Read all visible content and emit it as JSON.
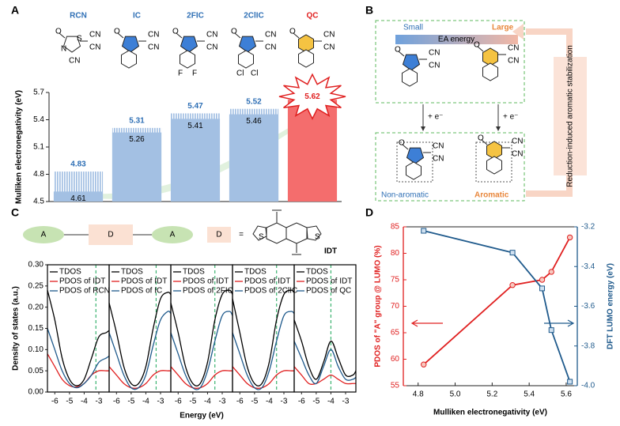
{
  "panel_labels": {
    "a": "A",
    "b": "B",
    "c": "C",
    "d": "D"
  },
  "atoms": {
    "cn": "CN",
    "o": "O",
    "s": "S",
    "n": "N",
    "f": "F",
    "cl": "Cl"
  },
  "panel_b": {
    "small": "Small",
    "large": "Large",
    "scale": "EA energy",
    "reduction": "+ e⁻",
    "non_aromatic": "Non-aromatic",
    "aromatic": "Aromatic",
    "side": "Reduction-induced aromatic stabilization"
  },
  "panel_c_scheme": {
    "acceptor": "A",
    "donor": "D",
    "equals": "=",
    "core": "IDT"
  },
  "chart_data": [
    {
      "type": "bar",
      "ylabel": "Mulliken electronegativity (eV)",
      "categories": [
        "RCN",
        "IC",
        "2FIC",
        "2ClIC",
        "QC"
      ],
      "values": [
        4.83,
        5.31,
        5.47,
        5.52,
        5.62
      ],
      "inner_values": [
        4.61,
        5.26,
        5.41,
        5.46,
        null
      ],
      "bar_colors": [
        "#a3c0e3",
        "#a3c0e3",
        "#a3c0e3",
        "#a3c0e3",
        "#f46d6d"
      ],
      "label_colors": [
        "#2e6fb5",
        "#2e6fb5",
        "#2e6fb5",
        "#2e6fb5",
        "#e02020"
      ],
      "ylim": [
        4.5,
        5.7
      ],
      "yticks": [
        4.5,
        4.8,
        5.1,
        5.4,
        5.7
      ]
    },
    {
      "type": "line",
      "xlabel": "Energy (eV)",
      "ylabel": "Density of states (a.u.)",
      "x": [
        -6.5,
        -6,
        -5.5,
        -5,
        -4.5,
        -4,
        -3.5,
        -3,
        -2.5,
        -2.3
      ],
      "xlim": [
        -6.5,
        -2.3
      ],
      "xticks": [
        -6,
        -5,
        -4,
        -3
      ],
      "ylim": [
        0,
        0.3
      ],
      "yticks": [
        {
          "value": 0,
          "label": "0.00"
        },
        {
          "value": 0.05,
          "label": "0.05"
        },
        {
          "value": 0.1,
          "label": "0.10"
        },
        {
          "value": 0.15,
          "label": "0.15"
        },
        {
          "value": 0.2,
          "label": "0.20"
        },
        {
          "value": 0.25,
          "label": "0.25"
        },
        {
          "value": 0.3,
          "label": "0.30"
        }
      ],
      "lumo_color": "#3cb371",
      "subplots": [
        {
          "lumo": -3.2,
          "series": [
            {
              "name": "TDOS",
              "color": "#000000",
              "values": [
                0.24,
                0.17,
                0.08,
                0.03,
                0.015,
                0.03,
                0.08,
                0.13,
                0.14,
                0.145
              ]
            },
            {
              "name": "PDOS of IDT",
              "color": "#e02020",
              "values": [
                0.09,
                0.06,
                0.03,
                0.015,
                0.012,
                0.02,
                0.04,
                0.05,
                0.05,
                0.05
              ]
            },
            {
              "name": "PDOS of RCN",
              "color": "#1f5a8c",
              "values": [
                0.15,
                0.1,
                0.05,
                0.02,
                0.01,
                0.02,
                0.04,
                0.07,
                0.08,
                0.085
              ]
            }
          ]
        },
        {
          "lumo": -3.3,
          "series": [
            {
              "name": "TDOS",
              "color": "#000000",
              "values": [
                0.21,
                0.14,
                0.06,
                0.02,
                0.02,
                0.06,
                0.15,
                0.22,
                0.235,
                0.23
              ]
            },
            {
              "name": "PDOS of IDT",
              "color": "#e02020",
              "values": [
                0.06,
                0.04,
                0.02,
                0.01,
                0.01,
                0.02,
                0.04,
                0.05,
                0.05,
                0.05
              ]
            },
            {
              "name": "PDOS of IC",
              "color": "#1f5a8c",
              "values": [
                0.14,
                0.09,
                0.04,
                0.01,
                0.01,
                0.04,
                0.11,
                0.17,
                0.19,
                0.185
              ]
            }
          ]
        },
        {
          "lumo": -3.5,
          "series": [
            {
              "name": "TDOS",
              "color": "#000000",
              "values": [
                0.21,
                0.14,
                0.06,
                0.02,
                0.02,
                0.07,
                0.17,
                0.23,
                0.24,
                0.23
              ]
            },
            {
              "name": "PDOS of IDT",
              "color": "#e02020",
              "values": [
                0.06,
                0.04,
                0.02,
                0.01,
                0.01,
                0.02,
                0.04,
                0.05,
                0.05,
                0.05
              ]
            },
            {
              "name": "PDOS of 2FIC",
              "color": "#1f5a8c",
              "values": [
                0.14,
                0.09,
                0.04,
                0.01,
                0.01,
                0.05,
                0.12,
                0.18,
                0.19,
                0.18
              ]
            }
          ]
        },
        {
          "lumo": -3.5,
          "series": [
            {
              "name": "TDOS",
              "color": "#000000",
              "values": [
                0.22,
                0.14,
                0.06,
                0.02,
                0.02,
                0.07,
                0.17,
                0.23,
                0.24,
                0.235
              ]
            },
            {
              "name": "PDOS of IDT",
              "color": "#e02020",
              "values": [
                0.06,
                0.04,
                0.02,
                0.01,
                0.01,
                0.02,
                0.04,
                0.05,
                0.05,
                0.05
              ]
            },
            {
              "name": "PDOS of 2ClIC",
              "color": "#1f5a8c",
              "values": [
                0.14,
                0.09,
                0.04,
                0.01,
                0.01,
                0.05,
                0.12,
                0.18,
                0.19,
                0.185
              ]
            }
          ]
        },
        {
          "lumo": -4.0,
          "series": [
            {
              "name": "TDOS",
              "color": "#000000",
              "values": [
                0.17,
                0.12,
                0.06,
                0.03,
                0.07,
                0.12,
                0.08,
                0.04,
                0.04,
                0.05
              ]
            },
            {
              "name": "PDOS of IDT",
              "color": "#e02020",
              "values": [
                0.06,
                0.04,
                0.02,
                0.02,
                0.03,
                0.04,
                0.03,
                0.02,
                0.02,
                0.02
              ]
            },
            {
              "name": "PDOS of QC",
              "color": "#1f5a8c",
              "values": [
                0.12,
                0.08,
                0.04,
                0.02,
                0.06,
                0.1,
                0.06,
                0.03,
                0.03,
                0.035
              ]
            }
          ]
        }
      ]
    },
    {
      "type": "line",
      "xlabel": "Mulliken electronegativity (eV)",
      "ylabel": "PDOS of \"A\" group @ LUMO (%)",
      "y2label": "DFT LUMO energy (eV)",
      "x": [
        4.83,
        5.31,
        5.47,
        5.52,
        5.62
      ],
      "xlim": [
        4.72,
        5.66
      ],
      "xticks": [
        4.8,
        {
          "value": 5.0,
          "label": "5.0"
        },
        5.2,
        5.4,
        5.6
      ],
      "ylim": [
        55,
        85
      ],
      "yticks": [
        55,
        60,
        65,
        70,
        75,
        80,
        85
      ],
      "y2lim": [
        -4.0,
        -3.2
      ],
      "y2ticks": [
        {
          "value": -4.0,
          "label": "-4.0"
        },
        -3.8,
        -3.6,
        -3.4,
        -3.2
      ],
      "series": [
        {
          "color": "#e02020",
          "values": [
            59,
            74,
            75,
            76.5,
            83
          ]
        },
        {
          "color": "#1f5a8c",
          "axis": "y2",
          "values": [
            -3.22,
            -3.33,
            -3.51,
            -3.72,
            -3.98
          ]
        }
      ]
    }
  ]
}
